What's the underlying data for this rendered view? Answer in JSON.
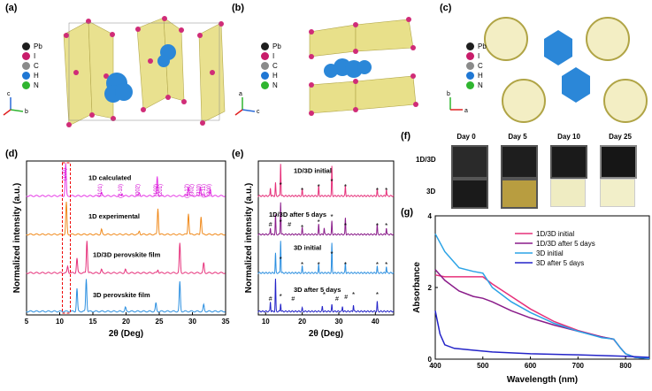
{
  "labels": {
    "a": "(a)",
    "b": "(b)",
    "c": "(c)",
    "d": "(d)",
    "e": "(e)",
    "f": "(f)",
    "g": "(g)"
  },
  "atom_legend": [
    {
      "el": "Pb",
      "color": "#1e1e1e"
    },
    {
      "el": "I",
      "color": "#c81c6a"
    },
    {
      "el": "C",
      "color": "#8a8a8a"
    },
    {
      "el": "H",
      "color": "#1f77d4"
    },
    {
      "el": "N",
      "color": "#2fb52f"
    }
  ],
  "axes_labels": {
    "a": {
      "c": "c",
      "b": "b",
      "a": "a"
    },
    "b": {
      "b": "b",
      "a": "a",
      "c": "c"
    },
    "c": {
      "b": "b",
      "a": "a"
    }
  },
  "photos": {
    "days": [
      "Day 0",
      "Day 5",
      "Day 10",
      "Day 25"
    ],
    "rows": [
      "1D/3D",
      "3D"
    ]
  },
  "chart_data": [
    {
      "id": "d",
      "type": "line",
      "xlabel": "2θ (Deg)",
      "ylabel": "Normalized intensity (a.u.)",
      "xlim": [
        5,
        35
      ],
      "xticks": [
        "5",
        "10",
        "15",
        "20",
        "25",
        "30",
        "35"
      ],
      "series": [
        {
          "name": "1D calculated",
          "color": "#e639e6",
          "peaks": [
            [
              10.9,
              1.0
            ],
            [
              16.3,
              0.1
            ],
            [
              19.4,
              0.08
            ],
            [
              22.0,
              0.1
            ],
            [
              24.7,
              0.6
            ],
            [
              29.4,
              0.3
            ],
            [
              31.2,
              0.3
            ],
            [
              32.7,
              0.2
            ]
          ]
        },
        {
          "name": "1D experimental",
          "color": "#f08a1c",
          "peaks": [
            [
              11.0,
              1.0
            ],
            [
              16.3,
              0.15
            ],
            [
              22.0,
              0.1
            ],
            [
              24.8,
              0.8
            ],
            [
              29.4,
              0.65
            ],
            [
              31.3,
              0.55
            ]
          ]
        },
        {
          "name": "1D/3D perovskite film",
          "color": "#e6307a",
          "peaks": [
            [
              11.2,
              0.2
            ],
            [
              12.6,
              0.45
            ],
            [
              14.1,
              1.0
            ],
            [
              16.3,
              0.1
            ],
            [
              19.9,
              0.1
            ],
            [
              24.8,
              0.1
            ],
            [
              28.1,
              0.9
            ],
            [
              31.7,
              0.3
            ]
          ]
        },
        {
          "name": "3D perovskite film",
          "color": "#2b8fe0",
          "peaks": [
            [
              12.6,
              0.7
            ],
            [
              14.0,
              1.0
            ],
            [
              19.9,
              0.12
            ],
            [
              24.5,
              0.25
            ],
            [
              28.1,
              0.9
            ],
            [
              31.7,
              0.2
            ]
          ]
        }
      ],
      "miller": [
        "(100)",
        "(101)",
        "(2-10)",
        "(002)",
        "(102)",
        "(201)",
        "(2-12)",
        "(310)",
        "(302)",
        "(3-11)",
        "(300)"
      ]
    },
    {
      "id": "e",
      "type": "line",
      "xlabel": "2θ (Deg)",
      "ylabel": "Normalized intensity (a.u.)",
      "xlim": [
        8,
        45
      ],
      "xticks": [
        "10",
        "20",
        "30",
        "40"
      ],
      "markers": {
        "star": "*",
        "hash": "#"
      },
      "series": [
        {
          "name": "1D/3D initial",
          "color": "#e6307a",
          "peaks": [
            [
              11.3,
              0.25
            ],
            [
              12.7,
              0.4
            ],
            [
              14.1,
              1.0
            ],
            [
              20.0,
              0.2
            ],
            [
              24.5,
              0.3
            ],
            [
              28.1,
              0.9
            ],
            [
              31.8,
              0.3
            ],
            [
              40.5,
              0.2
            ],
            [
              43.0,
              0.2
            ]
          ]
        },
        {
          "name": "1D/3D after 5 days",
          "color": "#8a1c8a",
          "peaks": [
            [
              11.3,
              0.2
            ],
            [
              12.7,
              0.6
            ],
            [
              14.1,
              1.0
            ],
            [
              20.0,
              0.2
            ],
            [
              24.5,
              0.3
            ],
            [
              26.0,
              0.2
            ],
            [
              28.1,
              0.4
            ],
            [
              31.8,
              0.5
            ],
            [
              40.5,
              0.3
            ],
            [
              43.0,
              0.2
            ]
          ]
        },
        {
          "name": "3D initial",
          "color": "#2b8fe0",
          "peaks": [
            [
              12.7,
              0.6
            ],
            [
              14.1,
              1.0
            ],
            [
              20.0,
              0.2
            ],
            [
              24.5,
              0.25
            ],
            [
              28.1,
              0.9
            ],
            [
              31.8,
              0.3
            ],
            [
              40.5,
              0.2
            ],
            [
              43.0,
              0.2
            ]
          ]
        },
        {
          "name": "3D after 5 days",
          "color": "#2424c8",
          "peaks": [
            [
              11.3,
              0.3
            ],
            [
              12.7,
              1.0
            ],
            [
              14.1,
              0.25
            ],
            [
              20.0,
              0.1
            ],
            [
              25.5,
              0.15
            ],
            [
              28.1,
              0.2
            ],
            [
              31.0,
              0.15
            ],
            [
              34.0,
              0.2
            ],
            [
              40.5,
              0.3
            ]
          ]
        }
      ]
    },
    {
      "id": "g",
      "type": "line",
      "xlabel": "Wavelength (nm)",
      "ylabel": "Absorbance",
      "xlim": [
        400,
        850
      ],
      "ylim": [
        0,
        4
      ],
      "xticks": [
        "400",
        "500",
        "600",
        "700",
        "800"
      ],
      "yticks": [
        "0",
        "2",
        "4"
      ],
      "series": [
        {
          "name": "1D/3D initial",
          "color": "#e6307a",
          "points": [
            [
              400,
              2.35
            ],
            [
              420,
              2.3
            ],
            [
              450,
              2.3
            ],
            [
              500,
              2.3
            ],
            [
              520,
              2.1
            ],
            [
              560,
              1.75
            ],
            [
              600,
              1.4
            ],
            [
              650,
              1.05
            ],
            [
              700,
              0.8
            ],
            [
              750,
              0.62
            ],
            [
              775,
              0.55
            ],
            [
              790,
              0.3
            ],
            [
              800,
              0.15
            ],
            [
              820,
              0.05
            ],
            [
              850,
              0.02
            ]
          ]
        },
        {
          "name": "1D/3D after 5 days",
          "color": "#8a1c8a",
          "points": [
            [
              400,
              2.5
            ],
            [
              420,
              2.2
            ],
            [
              450,
              1.9
            ],
            [
              480,
              1.75
            ],
            [
              500,
              1.7
            ],
            [
              520,
              1.6
            ],
            [
              560,
              1.35
            ],
            [
              600,
              1.15
            ],
            [
              650,
              0.95
            ],
            [
              700,
              0.78
            ],
            [
              750,
              0.62
            ],
            [
              775,
              0.56
            ],
            [
              790,
              0.3
            ],
            [
              800,
              0.15
            ],
            [
              820,
              0.05
            ],
            [
              850,
              0.02
            ]
          ]
        },
        {
          "name": "3D initial",
          "color": "#2ba3e6",
          "points": [
            [
              400,
              3.5
            ],
            [
              420,
              3.0
            ],
            [
              450,
              2.55
            ],
            [
              480,
              2.45
            ],
            [
              500,
              2.4
            ],
            [
              520,
              2.0
            ],
            [
              560,
              1.6
            ],
            [
              600,
              1.3
            ],
            [
              650,
              1.0
            ],
            [
              700,
              0.78
            ],
            [
              750,
              0.6
            ],
            [
              775,
              0.56
            ],
            [
              790,
              0.3
            ],
            [
              800,
              0.15
            ],
            [
              820,
              0.05
            ],
            [
              850,
              0.02
            ]
          ]
        },
        {
          "name": "3D after 5 days",
          "color": "#2424c8",
          "points": [
            [
              400,
              1.35
            ],
            [
              410,
              0.7
            ],
            [
              420,
              0.4
            ],
            [
              440,
              0.3
            ],
            [
              480,
              0.25
            ],
            [
              520,
              0.2
            ],
            [
              600,
              0.15
            ],
            [
              700,
              0.12
            ],
            [
              800,
              0.08
            ],
            [
              850,
              0.05
            ]
          ]
        }
      ]
    }
  ]
}
